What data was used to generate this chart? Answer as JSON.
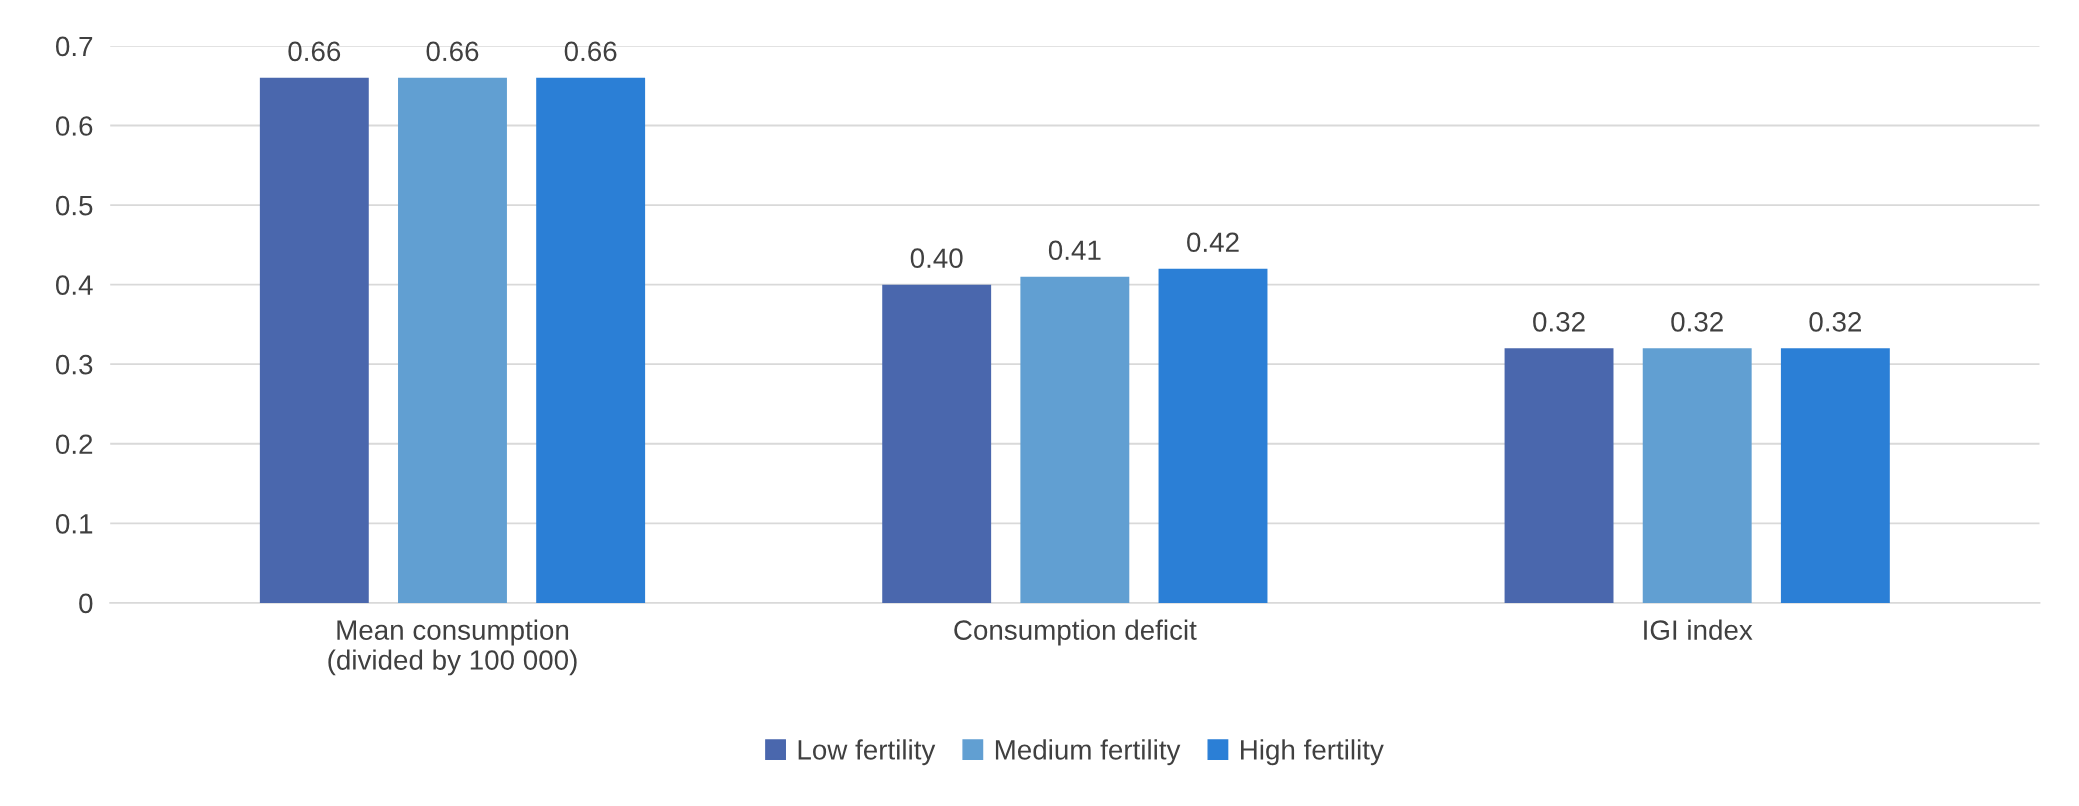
{
  "chart_data": {
    "type": "bar",
    "categories": [
      "Mean consumption\n(divided by 100 000)",
      "Consumption deficit",
      "IGI index"
    ],
    "series": [
      {
        "name": "Low fertility",
        "color": "#4a67ad",
        "values": [
          0.66,
          0.4,
          0.32
        ],
        "value_labels": [
          "0.66",
          "0.40",
          "0.32"
        ]
      },
      {
        "name": "Medium fertility",
        "color": "#619fd2",
        "values": [
          0.66,
          0.41,
          0.32
        ],
        "value_labels": [
          "0.66",
          "0.41",
          "0.32"
        ]
      },
      {
        "name": "High fertility",
        "color": "#2b7fd6",
        "values": [
          0.66,
          0.42,
          0.32
        ],
        "value_labels": [
          "0.66",
          "0.42",
          "0.32"
        ]
      }
    ],
    "ylim": [
      0,
      0.7
    ],
    "yticks": [
      0,
      0.1,
      0.2,
      0.3,
      0.4,
      0.5,
      0.6,
      0.7
    ],
    "grid": "y",
    "legend": "bottom"
  }
}
